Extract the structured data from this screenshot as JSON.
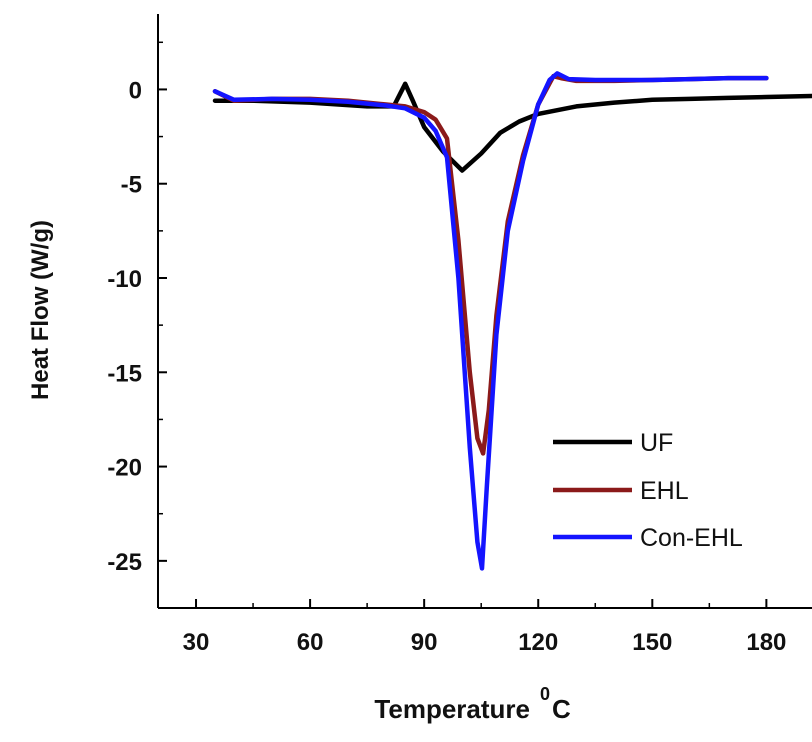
{
  "chart_data": {
    "type": "line",
    "xlabel": "Temperature",
    "xlabel_superscript": "0",
    "xlabel_unit": "C",
    "ylabel": "Heat Flow (W/g)",
    "xlim": [
      20,
      192
    ],
    "ylim": [
      -27.5,
      4
    ],
    "x_ticks": [
      30,
      60,
      90,
      120,
      150,
      180
    ],
    "y_ticks": [
      0,
      -5,
      -10,
      -15,
      -20,
      -25
    ],
    "x_tick_labels": [
      "30",
      "60",
      "90",
      "120",
      "150",
      "180"
    ],
    "y_tick_labels": [
      "0",
      "-5",
      "-10",
      "-15",
      "-20",
      "-25"
    ],
    "grid": false,
    "legend_position": "bottom-right",
    "series": [
      {
        "name": "UF",
        "color": "#000000",
        "x": [
          35,
          45,
          60,
          75,
          82,
          85,
          87,
          90,
          95,
          100,
          105,
          110,
          115,
          120,
          130,
          140,
          150,
          160,
          170,
          180,
          192
        ],
        "y": [
          -0.6,
          -0.6,
          -0.7,
          -0.9,
          -0.9,
          0.3,
          -0.6,
          -2.0,
          -3.3,
          -4.3,
          -3.4,
          -2.3,
          -1.7,
          -1.3,
          -0.9,
          -0.7,
          -0.55,
          -0.5,
          -0.45,
          -0.4,
          -0.35
        ]
      },
      {
        "name": "EHL",
        "color": "#8b1a1a",
        "x": [
          35,
          40,
          50,
          60,
          70,
          80,
          85,
          90,
          93,
          96,
          99,
          102,
          104,
          105.5,
          107,
          109,
          112,
          116,
          120,
          124,
          126,
          130,
          140,
          150,
          160,
          170,
          180
        ],
        "y": [
          -0.1,
          -0.6,
          -0.5,
          -0.5,
          -0.6,
          -0.8,
          -0.9,
          -1.2,
          -1.6,
          -2.6,
          -8.0,
          -15.0,
          -18.5,
          -19.3,
          -17.0,
          -12.0,
          -7.0,
          -3.5,
          -0.8,
          0.7,
          0.6,
          0.45,
          0.45,
          0.5,
          0.55,
          0.6,
          0.6
        ]
      },
      {
        "name": "Con-EHL",
        "color": "#1414ff",
        "x": [
          35,
          40,
          50,
          60,
          70,
          80,
          85,
          90,
          93,
          96,
          99,
          102,
          104,
          105.2,
          106.5,
          109,
          112,
          116,
          120,
          123,
          125,
          128,
          135,
          150,
          160,
          170,
          180
        ],
        "y": [
          -0.1,
          -0.55,
          -0.5,
          -0.55,
          -0.65,
          -0.85,
          -1.0,
          -1.5,
          -2.2,
          -3.6,
          -10.0,
          -19.0,
          -24.0,
          -25.4,
          -21.0,
          -13.0,
          -7.5,
          -3.8,
          -0.8,
          0.5,
          0.85,
          0.55,
          0.5,
          0.5,
          0.55,
          0.6,
          0.6
        ]
      }
    ]
  }
}
